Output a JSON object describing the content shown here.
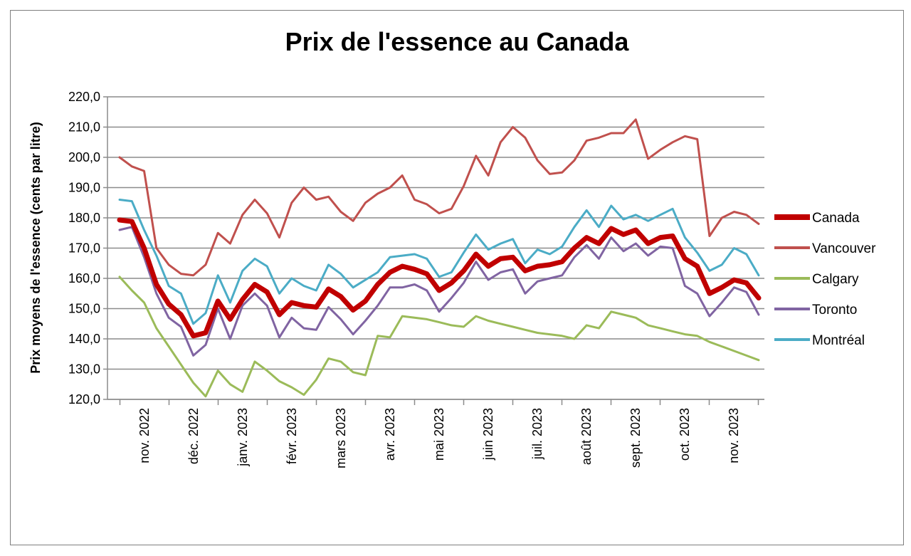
{
  "chart_data": {
    "type": "line",
    "title": "Prix de l'essence au Canada",
    "ylabel": "Prix moyens de l'essence (cents par litre)",
    "xlabel": "",
    "ylim": [
      120,
      220
    ],
    "y_ticks": [
      "120,0",
      "130,0",
      "140,0",
      "150,0",
      "160,0",
      "170,0",
      "180,0",
      "190,0",
      "200,0",
      "210,0",
      "220,0"
    ],
    "month_labels": [
      "nov. 2022",
      "déc. 2022",
      "janv. 2023",
      "févr. 2023",
      "mars 2023",
      "avr. 2023",
      "mai 2023",
      "juin 2023",
      "juil. 2023",
      "août 2023",
      "sept. 2023",
      "oct. 2023",
      "nov. 2023"
    ],
    "grid": true,
    "legend_position": "right",
    "series": [
      {
        "name": "Canada",
        "color": "#c00000",
        "width": 7,
        "values": [
          179.3,
          178.8,
          170.0,
          158.0,
          151.5,
          148.0,
          141.0,
          142.0,
          152.5,
          146.5,
          153.0,
          158.0,
          155.5,
          148.0,
          152.0,
          151.0,
          150.5,
          156.5,
          154.0,
          149.5,
          152.5,
          158.0,
          162.0,
          164.0,
          163.0,
          161.5,
          156.0,
          158.5,
          162.5,
          168.0,
          164.0,
          166.5,
          167.0,
          162.5,
          164.0,
          164.5,
          165.5,
          170.0,
          173.5,
          171.5,
          176.5,
          174.5,
          176.0,
          171.5,
          173.5,
          174.0,
          166.5,
          164.0,
          155.0,
          157.0,
          159.5,
          158.5,
          153.5
        ]
      },
      {
        "name": "Vancouver",
        "color": "#c0504d",
        "width": 3,
        "values": [
          200.0,
          197.0,
          195.5,
          170.0,
          164.5,
          161.5,
          161.0,
          164.5,
          175.0,
          171.5,
          181.0,
          186.0,
          181.5,
          173.5,
          185.0,
          190.0,
          186.0,
          187.0,
          182.0,
          179.0,
          185.0,
          188.0,
          190.0,
          194.0,
          186.0,
          184.5,
          181.5,
          183.0,
          190.5,
          200.5,
          194.0,
          205.0,
          210.0,
          206.5,
          199.0,
          194.5,
          195.0,
          199.0,
          205.5,
          206.5,
          208.0,
          208.0,
          212.5,
          199.5,
          202.5,
          205.0,
          207.0,
          206.0,
          174.0,
          180.0,
          182.0,
          181.0,
          178.0
        ]
      },
      {
        "name": "Calgary",
        "color": "#9bbb59",
        "width": 3,
        "values": [
          160.5,
          156.0,
          152.0,
          143.5,
          137.5,
          131.5,
          125.5,
          121.0,
          129.5,
          125.0,
          122.5,
          132.5,
          129.5,
          126.0,
          124.0,
          121.5,
          126.5,
          133.5,
          132.5,
          129.0,
          128.0,
          141.0,
          140.5,
          147.5,
          147.0,
          146.5,
          145.5,
          144.5,
          144.0,
          147.5,
          146.0,
          145.0,
          144.0,
          143.0,
          142.0,
          141.5,
          141.0,
          140.0,
          144.5,
          143.5,
          149.0,
          148.0,
          147.0,
          144.5,
          143.5,
          142.5,
          141.5,
          141.0,
          139.0,
          137.5,
          136.0,
          134.5,
          133.0
        ]
      },
      {
        "name": "Toronto",
        "color": "#8064a2",
        "width": 3,
        "values": [
          176.0,
          177.0,
          167.0,
          155.0,
          147.0,
          144.0,
          134.5,
          138.0,
          150.0,
          140.0,
          151.0,
          155.0,
          151.0,
          140.5,
          147.0,
          143.5,
          143.0,
          150.5,
          146.5,
          141.5,
          146.0,
          151.0,
          157.0,
          157.0,
          158.0,
          156.0,
          149.0,
          153.5,
          158.5,
          165.5,
          159.5,
          162.0,
          163.0,
          155.0,
          159.0,
          160.0,
          161.0,
          167.0,
          171.0,
          166.5,
          173.5,
          169.0,
          171.5,
          167.5,
          170.5,
          170.0,
          157.5,
          155.0,
          147.5,
          152.0,
          157.0,
          155.5,
          148.0
        ]
      },
      {
        "name": "Montréal",
        "color": "#4bacc6",
        "width": 3,
        "values": [
          186.0,
          185.5,
          176.0,
          167.5,
          157.5,
          155.0,
          145.0,
          148.5,
          161.0,
          152.0,
          162.5,
          166.5,
          164.0,
          155.0,
          160.0,
          157.5,
          156.0,
          164.5,
          161.5,
          157.0,
          159.5,
          162.0,
          167.0,
          167.5,
          168.0,
          166.5,
          160.5,
          162.0,
          168.5,
          174.5,
          169.5,
          171.5,
          173.0,
          165.0,
          169.5,
          168.0,
          170.5,
          177.0,
          182.5,
          177.0,
          184.0,
          179.5,
          181.0,
          179.0,
          181.0,
          183.0,
          173.5,
          168.5,
          162.5,
          164.5,
          170.0,
          168.0,
          161.0
        ]
      }
    ]
  }
}
